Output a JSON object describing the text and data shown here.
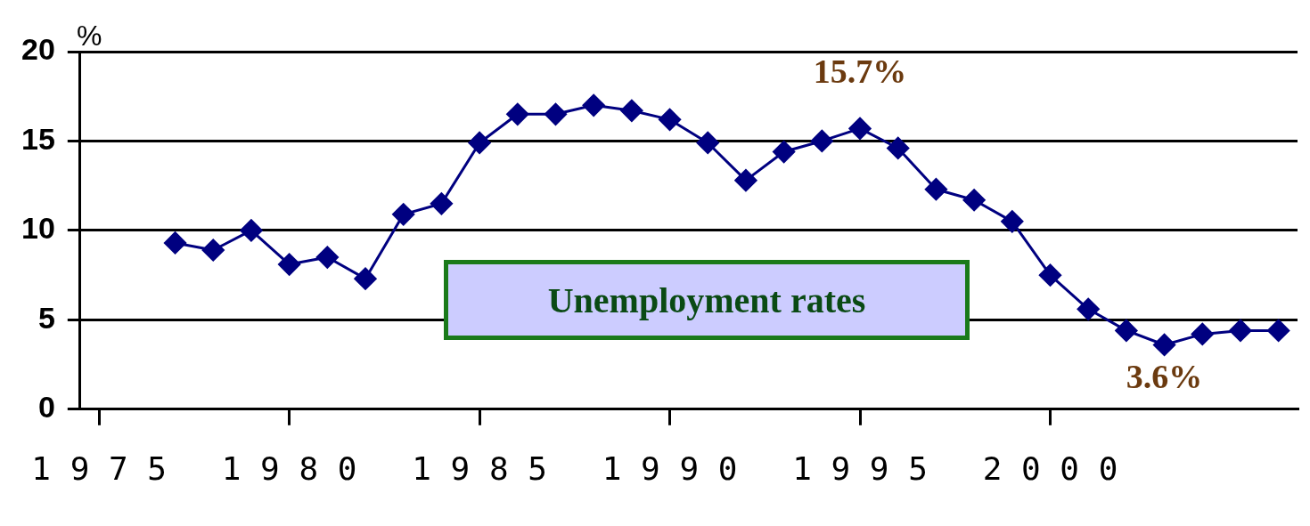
{
  "chart_data": {
    "type": "line",
    "title": "Unemployment rates",
    "ylabel": "%",
    "x": [
      1977,
      1978,
      1979,
      1980,
      1981,
      1982,
      1983,
      1984,
      1985,
      1986,
      1987,
      1988,
      1989,
      1990,
      1991,
      1992,
      1993,
      1994,
      1995,
      1996,
      1997,
      1998,
      1999,
      2000,
      2001,
      2002,
      2003,
      2004,
      2005,
      2006
    ],
    "series": [
      {
        "color": "#000080",
        "values": [
          9.3,
          8.9,
          10.0,
          8.1,
          8.5,
          7.3,
          10.9,
          11.5,
          14.9,
          16.5,
          16.5,
          17.0,
          16.7,
          16.2,
          14.9,
          12.8,
          14.4,
          15.0,
          15.7,
          14.6,
          12.3,
          11.7,
          10.5,
          7.5,
          5.6,
          4.4,
          3.6,
          4.2,
          4.4,
          4.4
        ]
      }
    ],
    "xlim": [
      1974.5,
      2006.5
    ],
    "xticks": [
      1975,
      1980,
      1985,
      1990,
      1995,
      2000
    ],
    "ylim": [
      0,
      20
    ],
    "yticks": [
      0,
      5,
      10,
      15,
      20
    ],
    "grid": "y",
    "legend": false,
    "marker": "diamond",
    "line_style": "solid",
    "annotations": [
      {
        "text": "15.7%",
        "x": 1995,
        "y": 15.7
      },
      {
        "text": "3.6%",
        "x": 2003,
        "y": 3.6
      }
    ]
  }
}
